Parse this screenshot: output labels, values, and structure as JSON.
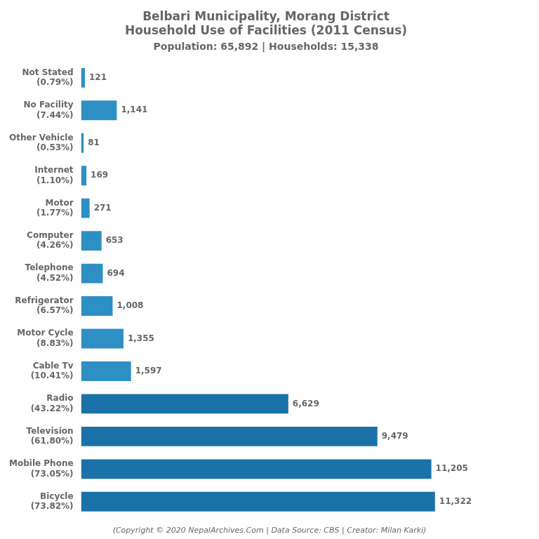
{
  "chart_data": {
    "type": "bar",
    "orientation": "horizontal",
    "title": [
      "Belbari Municipality, Morang District",
      "Household Use of Facilities (2011 Census)"
    ],
    "subtitle": "Population: 65,892 | Households: 15,338",
    "annotations": [
      "(Copyright © 2020 NepalArchives.Com | Data Source: CBS | Creator: Milan Karki)"
    ],
    "categories": [
      "Not Stated\n(0.79%)",
      "No Facility\n(7.44%)",
      "Other Vehicle\n(0.53%)",
      "Internet\n(1.10%)",
      "Motor\n(1.77%)",
      "Computer\n(4.26%)",
      "Telephone\n(4.52%)",
      "Refrigerator\n(6.57%)",
      "Motor Cycle\n(8.83%)",
      "Cable Tv\n(10.41%)",
      "Radio\n(43.22%)",
      "Television\n(61.80%)",
      "Mobile Phone\n(73.05%)",
      "Bicycle\n(73.82%)"
    ],
    "values": [
      121,
      1141,
      81,
      169,
      271,
      653,
      694,
      1008,
      1355,
      1597,
      6629,
      9479,
      11205,
      11322
    ],
    "value_labels": [
      "121",
      "1,141",
      "81",
      "169",
      "271",
      "653",
      "694",
      "1,008",
      "1,355",
      "1,597",
      "6,629",
      "9,479",
      "11,205",
      "11,322"
    ],
    "colors": [
      "#2e8fc4",
      "#2e8fc4",
      "#2e8fc4",
      "#2e8fc4",
      "#2e8fc4",
      "#2e8fc4",
      "#2e8fc4",
      "#2e8fc4",
      "#2e8fc4",
      "#2e8fc4",
      "#1a72a8",
      "#1a72a8",
      "#1a72a8",
      "#1a72a8"
    ],
    "xlim": [
      0,
      14200
    ],
    "data_labels": true,
    "tick_labels": "y",
    "grid": false
  }
}
